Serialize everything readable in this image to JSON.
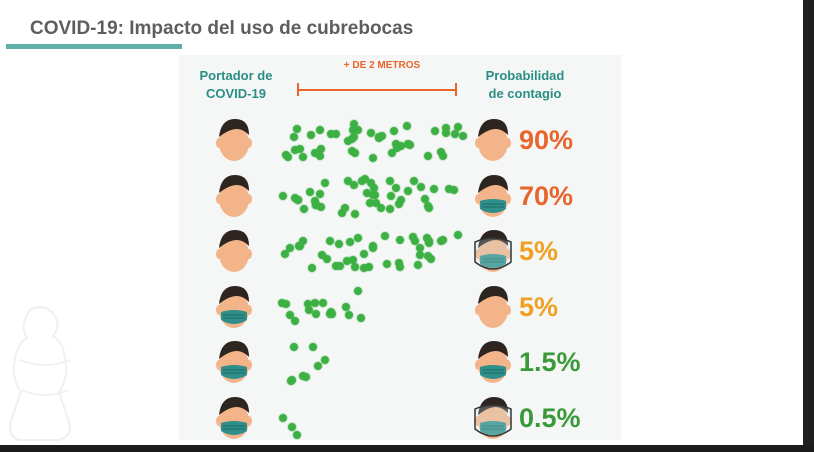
{
  "slide": {
    "title": "COVID-19: Impacto del uso de cubrebocas"
  },
  "infographic": {
    "left_header": "Portador de\nCOVID-19",
    "right_header": "Probabilidad\nde contagio",
    "distance_label": "+ DE 2 METROS",
    "rows": [
      {
        "left_mask": false,
        "right_protection": "none",
        "probability": "90%",
        "color": "#e8662b",
        "virus_count": 44
      },
      {
        "left_mask": false,
        "right_protection": "mask",
        "probability": "70%",
        "color": "#e8662b",
        "virus_count": 42
      },
      {
        "left_mask": false,
        "right_protection": "mask+shield",
        "probability": "5%",
        "color": "#f0a020",
        "virus_count": 40
      },
      {
        "left_mask": true,
        "right_protection": "none",
        "probability": "5%",
        "color": "#f0a020",
        "virus_count": 16
      },
      {
        "left_mask": true,
        "right_protection": "mask",
        "probability": "1.5%",
        "color": "#3a9a3a",
        "virus_count": 8
      },
      {
        "left_mask": true,
        "right_protection": "mask+shield",
        "probability": "0.5%",
        "color": "#3a9a3a",
        "virus_count": 3
      }
    ]
  },
  "colors": {
    "accent_teal": "#5fb0a9",
    "virus_green": "#3cb043",
    "skin": "#f4b48a",
    "hair": "#2e2420",
    "mask_teal": "#2f8f8a"
  },
  "icons": {
    "face": "person-face-icon",
    "mask": "face-mask-icon",
    "shield": "face-shield-icon",
    "virus": "virus-particle-icon"
  }
}
